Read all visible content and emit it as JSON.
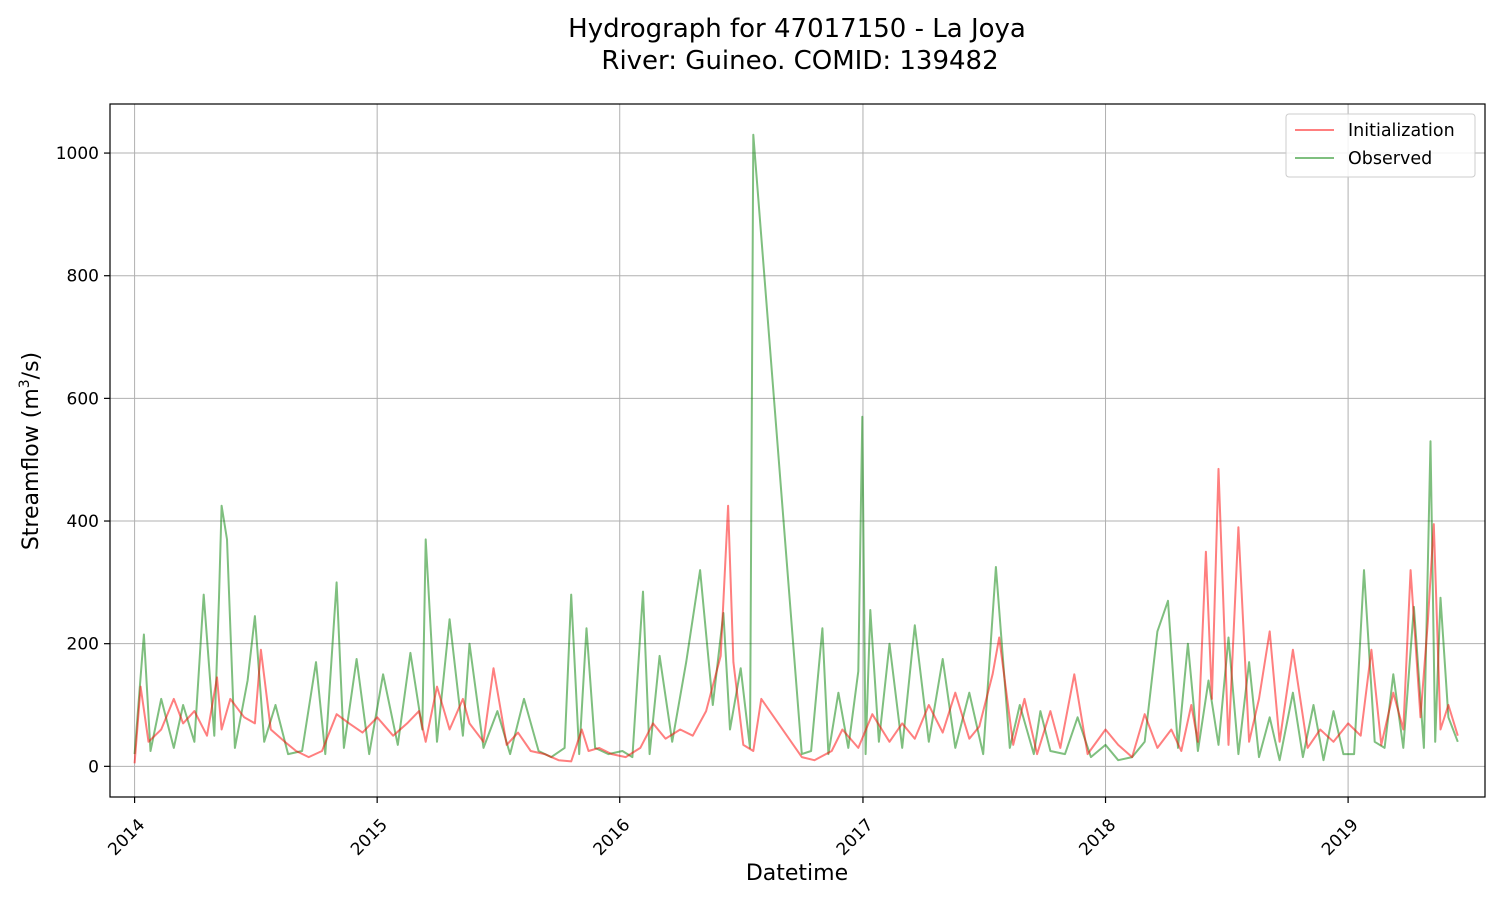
{
  "chart_data": {
    "type": "line",
    "title": "Hydrograph for 47017150 - La Joya",
    "subtitle": "River: Guineo. COMID: 139482",
    "xlabel": "Datetime",
    "ylabel_main": "Streamflow (m",
    "ylabel_sup": "3",
    "ylabel_end": "/s)",
    "xlim": [
      "2013-11-25",
      "2019-07-26"
    ],
    "ylim": [
      -50,
      1080
    ],
    "x_ticks": [
      {
        "date": "2014-01-01",
        "label": "2014"
      },
      {
        "date": "2015-01-01",
        "label": "2015"
      },
      {
        "date": "2016-01-01",
        "label": "2016"
      },
      {
        "date": "2017-01-01",
        "label": "2017"
      },
      {
        "date": "2018-01-01",
        "label": "2018"
      },
      {
        "date": "2019-01-01",
        "label": "2019"
      }
    ],
    "y_ticks": [
      {
        "value": 0,
        "label": "0"
      },
      {
        "value": 200,
        "label": "200"
      },
      {
        "value": 400,
        "label": "400"
      },
      {
        "value": 600,
        "label": "600"
      },
      {
        "value": 800,
        "label": "800"
      },
      {
        "value": 1000,
        "label": "1000"
      }
    ],
    "grid": true,
    "legend_position": "top-right",
    "series": [
      {
        "name": "Initialization",
        "color": "#ff0000",
        "opacity": 0.5,
        "x": [
          "2014-01-01",
          "2014-01-10",
          "2014-01-22",
          "2014-02-10",
          "2014-03-01",
          "2014-03-15",
          "2014-04-01",
          "2014-04-20",
          "2014-05-05",
          "2014-05-12",
          "2014-05-25",
          "2014-06-15",
          "2014-07-01",
          "2014-07-10",
          "2014-07-25",
          "2014-08-15",
          "2014-09-01",
          "2014-09-20",
          "2014-10-10",
          "2014-11-01",
          "2014-11-20",
          "2014-12-10",
          "2015-01-01",
          "2015-01-25",
          "2015-02-15",
          "2015-03-05",
          "2015-03-15",
          "2015-04-01",
          "2015-04-20",
          "2015-05-10",
          "2015-05-20",
          "2015-06-10",
          "2015-06-25",
          "2015-07-15",
          "2015-08-01",
          "2015-08-20",
          "2015-09-10",
          "2015-10-01",
          "2015-10-20",
          "2015-11-05",
          "2015-11-15",
          "2015-12-01",
          "2015-12-20",
          "2016-01-10",
          "2016-02-01",
          "2016-02-20",
          "2016-03-10",
          "2016-04-01",
          "2016-04-20",
          "2016-05-10",
          "2016-06-01",
          "2016-06-12",
          "2016-06-20",
          "2016-07-05",
          "2016-07-20",
          "2016-08-01",
          "2016-10-01",
          "2016-10-20",
          "2016-11-15",
          "2016-12-01",
          "2016-12-25",
          "2017-01-15",
          "2017-02-10",
          "2017-03-01",
          "2017-03-20",
          "2017-04-10",
          "2017-05-01",
          "2017-05-20",
          "2017-06-10",
          "2017-06-25",
          "2017-07-15",
          "2017-07-25",
          "2017-08-15",
          "2017-09-01",
          "2017-09-20",
          "2017-10-10",
          "2017-10-25",
          "2017-11-15",
          "2017-12-05",
          "2018-01-01",
          "2018-01-20",
          "2018-02-10",
          "2018-03-01",
          "2018-03-20",
          "2018-04-10",
          "2018-04-25",
          "2018-05-10",
          "2018-05-20",
          "2018-06-01",
          "2018-06-10",
          "2018-06-20",
          "2018-07-05",
          "2018-07-20",
          "2018-08-05",
          "2018-08-20",
          "2018-09-05",
          "2018-09-20",
          "2018-10-10",
          "2018-11-01",
          "2018-11-20",
          "2018-12-10",
          "2019-01-01",
          "2019-01-20",
          "2019-02-05",
          "2019-02-20",
          "2019-03-10",
          "2019-03-25",
          "2019-04-05",
          "2019-04-20",
          "2019-05-01",
          "2019-05-10",
          "2019-05-20",
          "2019-06-01",
          "2019-06-15"
        ],
        "y": [
          5,
          130,
          40,
          60,
          110,
          70,
          90,
          50,
          145,
          60,
          110,
          80,
          70,
          190,
          60,
          40,
          25,
          15,
          25,
          85,
          70,
          55,
          80,
          50,
          70,
          90,
          40,
          130,
          60,
          110,
          70,
          40,
          160,
          35,
          55,
          25,
          20,
          10,
          8,
          60,
          25,
          30,
          20,
          15,
          30,
          70,
          45,
          60,
          50,
          90,
          180,
          425,
          170,
          35,
          25,
          110,
          15,
          10,
          25,
          60,
          30,
          85,
          40,
          70,
          45,
          100,
          55,
          120,
          45,
          65,
          150,
          210,
          35,
          110,
          20,
          90,
          30,
          150,
          20,
          60,
          35,
          15,
          85,
          30,
          60,
          25,
          100,
          40,
          350,
          110,
          485,
          35,
          390,
          40,
          110,
          220,
          40,
          190,
          30,
          60,
          40,
          70,
          50,
          190,
          35,
          120,
          60,
          320,
          80,
          235,
          395,
          60,
          100,
          50
        ]
      },
      {
        "name": "Observed",
        "color": "#008000",
        "opacity": 0.5,
        "x": [
          "2014-01-01",
          "2014-01-15",
          "2014-01-25",
          "2014-02-10",
          "2014-03-01",
          "2014-03-15",
          "2014-04-01",
          "2014-04-15",
          "2014-05-01",
          "2014-05-08",
          "2014-05-12",
          "2014-05-20",
          "2014-06-01",
          "2014-06-20",
          "2014-07-01",
          "2014-07-15",
          "2014-08-01",
          "2014-08-20",
          "2014-09-10",
          "2014-10-01",
          "2014-10-15",
          "2014-11-01",
          "2014-11-12",
          "2014-12-01",
          "2014-12-20",
          "2015-01-10",
          "2015-02-01",
          "2015-02-20",
          "2015-03-10",
          "2015-03-15",
          "2015-04-01",
          "2015-04-20",
          "2015-05-10",
          "2015-05-20",
          "2015-06-10",
          "2015-07-01",
          "2015-07-20",
          "2015-08-10",
          "2015-09-01",
          "2015-09-20",
          "2015-10-10",
          "2015-10-20",
          "2015-11-01",
          "2015-11-12",
          "2015-11-25",
          "2015-12-15",
          "2016-01-05",
          "2016-01-20",
          "2016-02-05",
          "2016-02-15",
          "2016-03-01",
          "2016-03-20",
          "2016-04-10",
          "2016-05-01",
          "2016-05-20",
          "2016-06-05",
          "2016-06-15",
          "2016-07-01",
          "2016-07-15",
          "2016-07-20",
          "2016-10-01",
          "2016-10-15",
          "2016-11-01",
          "2016-11-10",
          "2016-11-25",
          "2016-12-10",
          "2016-12-25",
          "2016-12-31",
          "2017-01-05",
          "2017-01-12",
          "2017-01-25",
          "2017-02-10",
          "2017-03-01",
          "2017-03-20",
          "2017-04-10",
          "2017-05-01",
          "2017-05-20",
          "2017-06-10",
          "2017-07-01",
          "2017-07-20",
          "2017-08-10",
          "2017-08-25",
          "2017-09-15",
          "2017-09-25",
          "2017-10-10",
          "2017-11-01",
          "2017-11-20",
          "2017-12-10",
          "2018-01-01",
          "2018-01-20",
          "2018-02-10",
          "2018-03-01",
          "2018-03-20",
          "2018-04-05",
          "2018-04-20",
          "2018-05-05",
          "2018-05-20",
          "2018-06-05",
          "2018-06-20",
          "2018-07-05",
          "2018-07-20",
          "2018-08-05",
          "2018-08-20",
          "2018-09-05",
          "2018-09-20",
          "2018-10-10",
          "2018-10-25",
          "2018-11-10",
          "2018-11-25",
          "2018-12-10",
          "2018-12-25",
          "2019-01-10",
          "2019-01-25",
          "2019-02-10",
          "2019-02-25",
          "2019-03-10",
          "2019-03-25",
          "2019-04-10",
          "2019-04-25",
          "2019-05-05",
          "2019-05-12",
          "2019-05-20",
          "2019-06-01",
          "2019-06-15"
        ],
        "y": [
          20,
          215,
          25,
          110,
          30,
          100,
          40,
          280,
          50,
          275,
          425,
          370,
          30,
          140,
          245,
          40,
          100,
          20,
          25,
          170,
          20,
          300,
          30,
          175,
          20,
          150,
          35,
          185,
          60,
          370,
          40,
          240,
          50,
          200,
          30,
          90,
          20,
          110,
          25,
          15,
          30,
          280,
          20,
          225,
          30,
          20,
          25,
          15,
          285,
          20,
          180,
          40,
          170,
          320,
          100,
          250,
          60,
          160,
          30,
          1030,
          20,
          25,
          225,
          20,
          120,
          30,
          155,
          570,
          20,
          255,
          40,
          200,
          30,
          230,
          40,
          175,
          30,
          120,
          20,
          325,
          30,
          100,
          20,
          90,
          25,
          20,
          80,
          15,
          35,
          10,
          15,
          40,
          220,
          270,
          30,
          200,
          25,
          140,
          35,
          210,
          20,
          170,
          15,
          80,
          10,
          120,
          15,
          100,
          10,
          90,
          20,
          20,
          320,
          40,
          30,
          150,
          30,
          260,
          30,
          530,
          40,
          275,
          80,
          40
        ]
      }
    ]
  }
}
